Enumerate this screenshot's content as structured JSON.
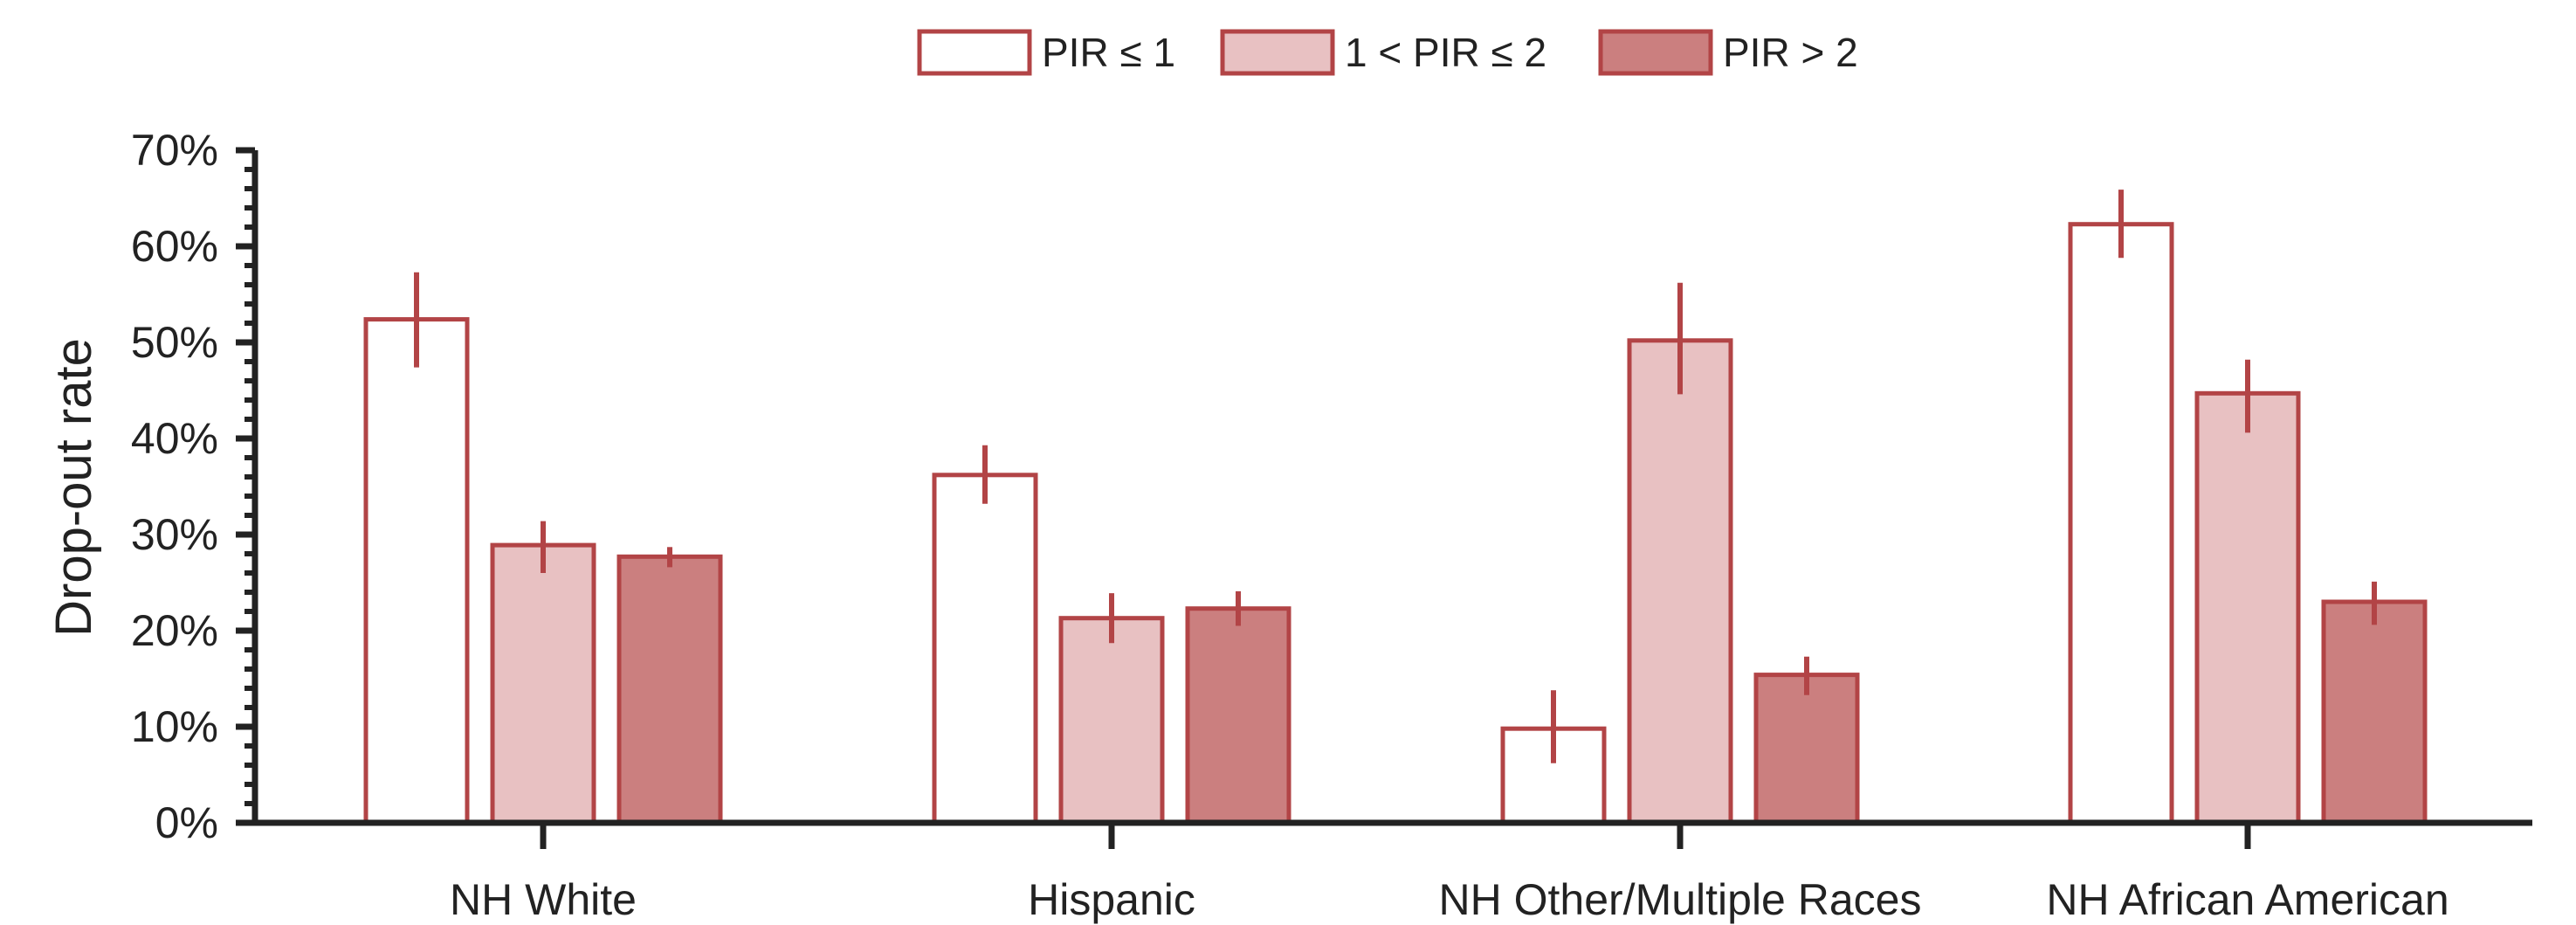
{
  "chart_data": {
    "type": "bar",
    "title": "",
    "xlabel": "",
    "ylabel": "Drop-out rate",
    "ylim": [
      0,
      70
    ],
    "y_ticks": [
      "0%",
      "10%",
      "20%",
      "30%",
      "40%",
      "50%",
      "60%",
      "70%"
    ],
    "y_tick_values": [
      0,
      10,
      20,
      30,
      40,
      50,
      60,
      70
    ],
    "minor_tick_step": 2,
    "grid": false,
    "legend_position": "top-center",
    "categories": [
      "NH White",
      "Hispanic",
      "NH Other/Multiple Races",
      "NH African American"
    ],
    "series": [
      {
        "name": "PIR ≤ 1",
        "fill": "#ffffff",
        "stroke": "#b24446",
        "values": [
          52.4,
          36.2,
          9.8,
          62.3
        ],
        "error_low": [
          47.4,
          33.2,
          6.2,
          58.8
        ],
        "error_high": [
          57.3,
          39.3,
          13.8,
          65.9
        ]
      },
      {
        "name": "1 < PIR ≤ 2",
        "fill": "#e8c1c2",
        "stroke": "#b24446",
        "values": [
          28.9,
          21.3,
          50.2,
          44.7
        ],
        "error_low": [
          26.0,
          18.7,
          44.6,
          40.6
        ],
        "error_high": [
          31.4,
          23.9,
          56.2,
          48.2
        ]
      },
      {
        "name": "PIR > 2",
        "fill": "#cb7f7f",
        "stroke": "#b24446",
        "values": [
          27.7,
          22.3,
          15.4,
          23.0
        ],
        "error_low": [
          26.6,
          20.5,
          13.3,
          20.6
        ],
        "error_high": [
          28.7,
          24.1,
          17.3,
          25.1
        ]
      }
    ],
    "colors": {
      "axis": "#222222",
      "error_bar": "#b24446"
    }
  }
}
